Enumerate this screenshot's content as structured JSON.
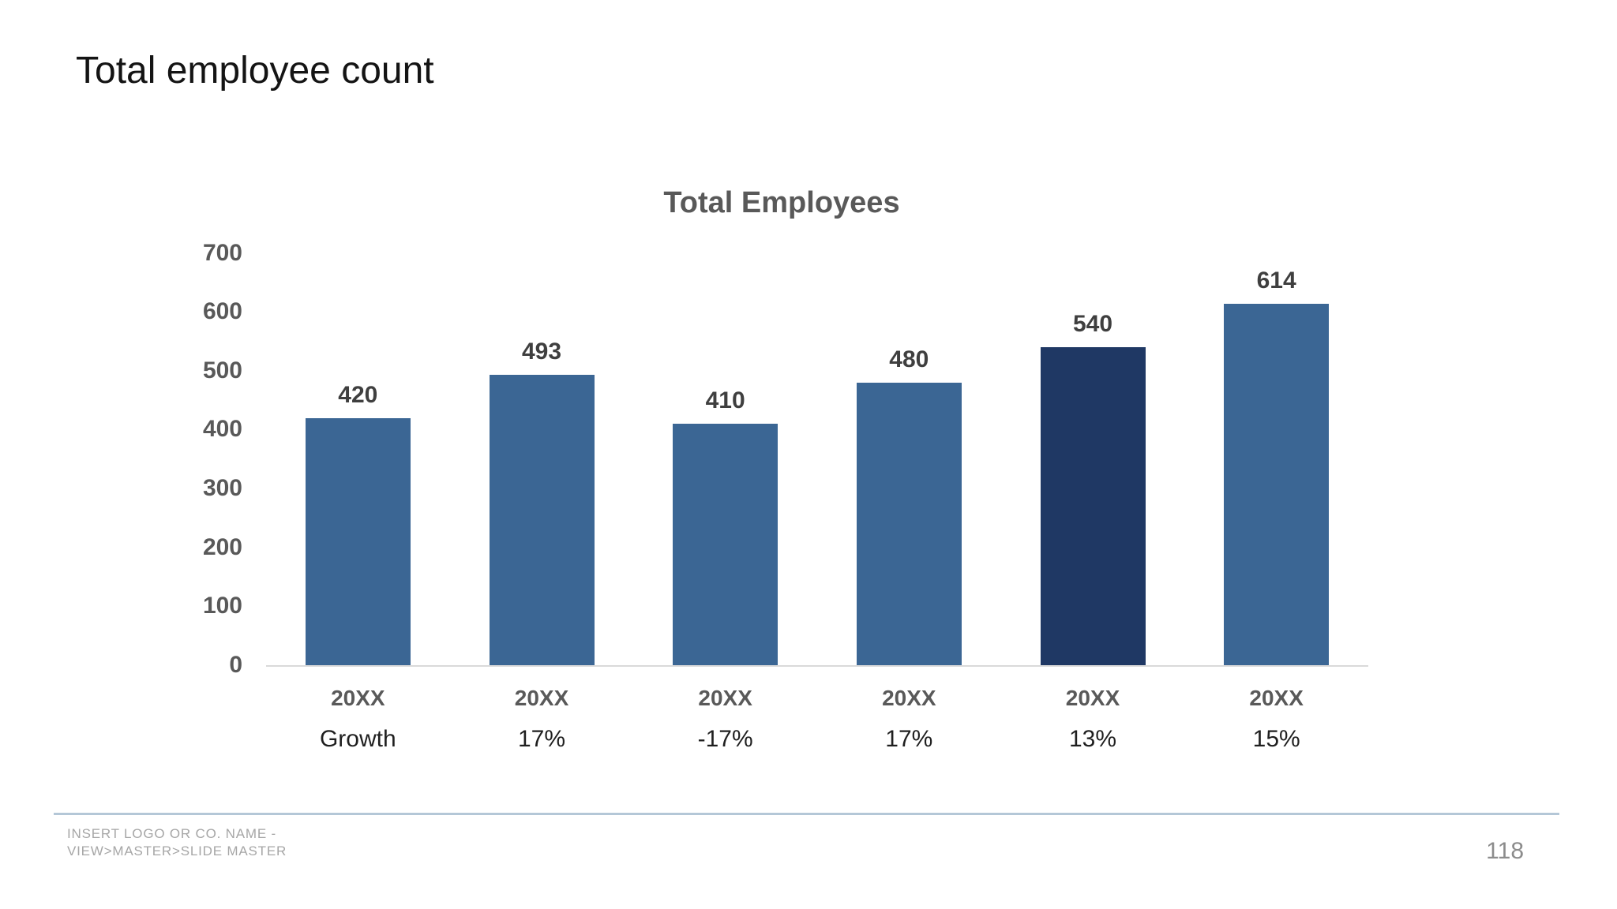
{
  "slide": {
    "title": "Total employee count",
    "page_number": "118",
    "footer_line1": "INSERT LOGO OR CO. NAME -",
    "footer_line2": "VIEW>MASTER>SLIDE MASTER"
  },
  "colors": {
    "bar": "#3B6694",
    "bar_highlight": "#1F3864",
    "axis_line": "#D9D9D9",
    "chart_text": "#595959",
    "divider": "#B4C7D7"
  },
  "chart_data": {
    "type": "bar",
    "title": "Total Employees",
    "categories": [
      "20XX",
      "20XX",
      "20XX",
      "20XX",
      "20XX",
      "20XX"
    ],
    "values": [
      420,
      493,
      410,
      480,
      540,
      614
    ],
    "bar_labels": [
      "420",
      "493",
      "410",
      "480",
      "540",
      "614"
    ],
    "growth_row": [
      "Growth",
      "17%",
      "-17%",
      "17%",
      "13%",
      "15%"
    ],
    "highlight_bar_index": 4,
    "y_ticks": [
      700,
      600,
      500,
      400,
      300,
      200,
      100,
      0
    ],
    "ylim": [
      0,
      700
    ],
    "xlabel": "",
    "ylabel": "",
    "grid": false,
    "legend": false
  }
}
